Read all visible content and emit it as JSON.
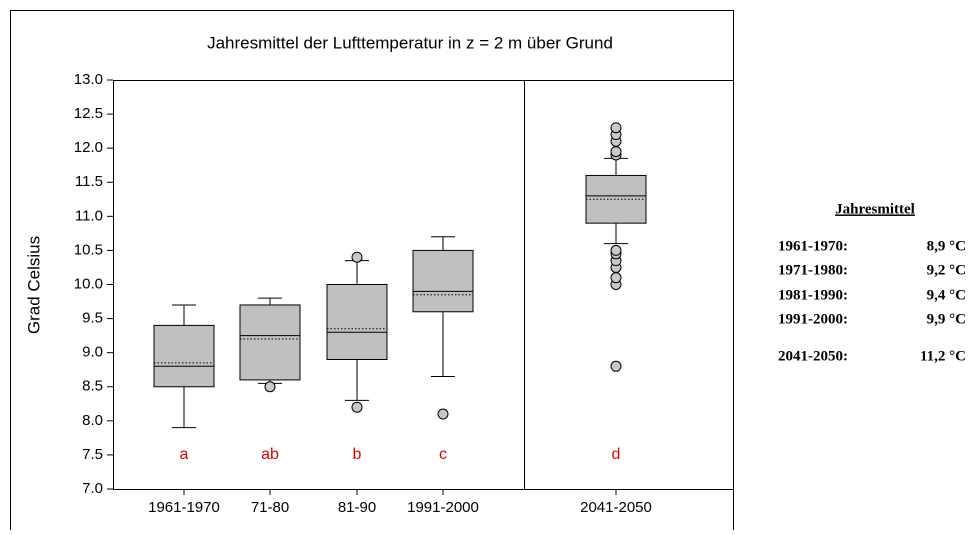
{
  "chart_data": {
    "type": "box",
    "title": "Jahresmittel der Lufttemperatur in z = 2 m über Grund",
    "y_label": "Grad Celsius",
    "categories": [
      "1961-1970",
      "71-80",
      "81-90",
      "1991-2000",
      "2041-2050"
    ],
    "color": "#c0c0c0",
    "ylim": [
      7.0,
      13.0
    ],
    "yticks": [
      {
        "value": 7,
        "label": "7.0"
      },
      7.5,
      {
        "value": 8,
        "label": "8.0"
      },
      8.5,
      {
        "value": 9,
        "label": "9.0"
      },
      9.5,
      {
        "value": 10,
        "label": "10.0"
      },
      10.5,
      {
        "value": 11,
        "label": "11.0"
      },
      11.5,
      {
        "value": 12,
        "label": "12.0"
      },
      12.5,
      {
        "value": 13,
        "label": "13.0"
      }
    ],
    "boxes": [
      {
        "whisker_low": 7.9,
        "q1": 8.5,
        "median": 8.8,
        "mean": 8.85,
        "q3": 9.4,
        "whisker_high": 9.7,
        "outliers": []
      },
      {
        "whisker_low": 8.55,
        "q1": 8.6,
        "median": 9.25,
        "mean": 9.2,
        "q3": 9.7,
        "whisker_high": 9.8,
        "outliers": [
          8.5
        ]
      },
      {
        "whisker_low": 8.3,
        "q1": 8.9,
        "median": 9.3,
        "mean": 9.35,
        "q3": 10.0,
        "whisker_high": 10.35,
        "outliers": [
          8.2,
          10.4
        ]
      },
      {
        "whisker_low": 8.65,
        "q1": 9.6,
        "median": 9.9,
        "mean": 9.85,
        "q3": 10.5,
        "whisker_high": 10.7,
        "outliers": [
          8.1
        ]
      },
      {
        "whisker_low": 10.6,
        "q1": 10.9,
        "median": 11.3,
        "mean": 11.25,
        "q3": 11.6,
        "whisker_high": 11.85,
        "outliers": [
          8.8,
          10.0,
          10.1,
          10.25,
          10.35,
          10.45,
          10.5,
          11.9,
          11.95,
          12.1,
          12.2,
          12.3
        ]
      }
    ],
    "group_letters": [
      "a",
      "ab",
      "b",
      "c",
      "d"
    ],
    "side_table": {
      "title": "Jahresmittel",
      "rows": [
        [
          "1961-1970:",
          "8,9 °C"
        ],
        [
          "1971-1980:",
          "9,2 °C"
        ],
        [
          "1981-1990:",
          "9,4 °C"
        ],
        [
          "1991-2000:",
          "9,9 °C"
        ],
        [
          "2041-2050:",
          "11,2 °C"
        ]
      ]
    }
  }
}
